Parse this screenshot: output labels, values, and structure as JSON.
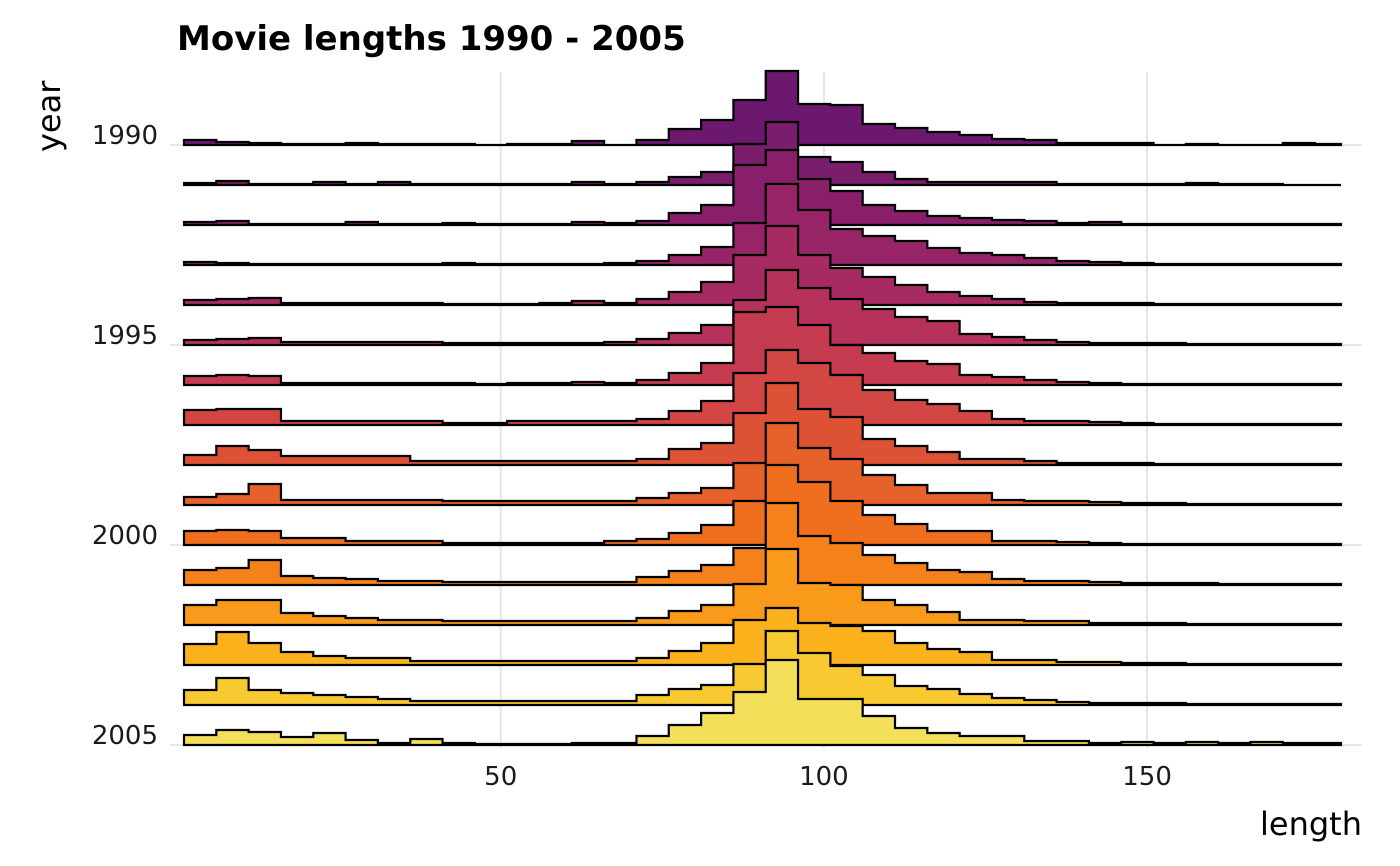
{
  "chart_data": {
    "type": "ridgeline",
    "title": "Movie lengths 1990 - 2005",
    "xlabel": "length",
    "ylabel": "year",
    "xlim": [
      1,
      180
    ],
    "x_ticks": [
      50,
      100,
      150
    ],
    "y_ticks": [
      1990,
      1995,
      2000,
      2005
    ],
    "bin_edges": [
      1,
      6,
      11,
      16,
      21,
      26,
      31,
      36,
      41,
      46,
      51,
      56,
      61,
      66,
      71,
      76,
      81,
      86,
      91,
      96,
      101,
      106,
      111,
      116,
      121,
      126,
      131,
      136,
      141,
      146,
      151,
      156,
      161,
      166,
      171,
      176,
      180
    ],
    "grid": true,
    "legend": "none",
    "colormap": "inferno",
    "colors": [
      "#6b186e",
      "#7a1d6d",
      "#891f6b",
      "#982468",
      "#a72b62",
      "#b6325b",
      "#c53b4f",
      "#d24644",
      "#dd5235",
      "#e7612a",
      "#ef6f1e",
      "#f5811b",
      "#f99a1a",
      "#fbb21d",
      "#f9c932",
      "#f3df5a",
      "#f1ef75",
      "#fcffa4"
    ],
    "series": [
      {
        "name": "1990",
        "values": [
          0.05,
          0.03,
          0.02,
          0.01,
          0.01,
          0.02,
          0.01,
          0.01,
          0.01,
          0,
          0.01,
          0.01,
          0.04,
          0,
          0.05,
          0.16,
          0.25,
          0.45,
          0.74,
          0.41,
          0.4,
          0.21,
          0.17,
          0.13,
          0.1,
          0.06,
          0.05,
          0.02,
          0.02,
          0.02,
          0,
          0.01,
          0,
          0,
          0.02,
          0.01
        ]
      },
      {
        "name": "1991",
        "values": [
          0.02,
          0.04,
          0.01,
          0.01,
          0.03,
          0.01,
          0.03,
          0.01,
          0.01,
          0.01,
          0.01,
          0.01,
          0.03,
          0.01,
          0.03,
          0.08,
          0.13,
          0.41,
          0.63,
          0.28,
          0.23,
          0.13,
          0.06,
          0.03,
          0.03,
          0.03,
          0.03,
          0.01,
          0.01,
          0.01,
          0.01,
          0.02,
          0.01,
          0.01,
          0,
          0
        ]
      },
      {
        "name": "1992",
        "values": [
          0.03,
          0.04,
          0.01,
          0.01,
          0.01,
          0.03,
          0.01,
          0.01,
          0.02,
          0.01,
          0.01,
          0.01,
          0.03,
          0.02,
          0.04,
          0.12,
          0.2,
          0.6,
          0.75,
          0.46,
          0.34,
          0.2,
          0.14,
          0.09,
          0.07,
          0.05,
          0.04,
          0.02,
          0.03,
          0.01,
          0.01,
          0.01,
          0.01,
          0.01,
          0.01,
          0.01
        ]
      },
      {
        "name": "1993",
        "values": [
          0.03,
          0.02,
          0.01,
          0.01,
          0.01,
          0.01,
          0.01,
          0.01,
          0.02,
          0.01,
          0.01,
          0.01,
          0.01,
          0.02,
          0.04,
          0.1,
          0.18,
          0.42,
          0.81,
          0.55,
          0.36,
          0.29,
          0.24,
          0.17,
          0.12,
          0.1,
          0.07,
          0.04,
          0.03,
          0.02,
          0.01,
          0.01,
          0.01,
          0.01,
          0.01,
          0.01
        ]
      },
      {
        "name": "1994",
        "values": [
          0.05,
          0.06,
          0.07,
          0.02,
          0.02,
          0.02,
          0.02,
          0.02,
          0.01,
          0.01,
          0.01,
          0.02,
          0.04,
          0.02,
          0.06,
          0.13,
          0.23,
          0.5,
          0.79,
          0.5,
          0.37,
          0.28,
          0.2,
          0.13,
          0.09,
          0.06,
          0.03,
          0.02,
          0.02,
          0.02,
          0.01,
          0.01,
          0.01,
          0.01,
          0.01,
          0.01
        ]
      },
      {
        "name": "1995",
        "values": [
          0.05,
          0.06,
          0.07,
          0.03,
          0.03,
          0.03,
          0.03,
          0.03,
          0.02,
          0.02,
          0.02,
          0.02,
          0.02,
          0.03,
          0.06,
          0.12,
          0.2,
          0.45,
          0.75,
          0.57,
          0.46,
          0.36,
          0.28,
          0.24,
          0.11,
          0.08,
          0.05,
          0.03,
          0.02,
          0.02,
          0.02,
          0.01,
          0.01,
          0.01,
          0.01,
          0.01
        ]
      },
      {
        "name": "1996",
        "values": [
          0.09,
          0.1,
          0.09,
          0.02,
          0.02,
          0.02,
          0.02,
          0.02,
          0.02,
          0.01,
          0.02,
          0.02,
          0.03,
          0.02,
          0.05,
          0.12,
          0.22,
          0.73,
          0.78,
          0.6,
          0.4,
          0.32,
          0.24,
          0.21,
          0.1,
          0.08,
          0.05,
          0.03,
          0.02,
          0.01,
          0.01,
          0.01,
          0.01,
          0.01,
          0.01,
          0.01
        ]
      },
      {
        "name": "1997",
        "values": [
          0.15,
          0.16,
          0.16,
          0.04,
          0.04,
          0.04,
          0.04,
          0.04,
          0.02,
          0.02,
          0.04,
          0.04,
          0.04,
          0.04,
          0.06,
          0.14,
          0.24,
          0.52,
          0.75,
          0.62,
          0.5,
          0.35,
          0.25,
          0.21,
          0.14,
          0.06,
          0.04,
          0.04,
          0.03,
          0.02,
          0.01,
          0.01,
          0.01,
          0.01,
          0.01,
          0.01
        ]
      },
      {
        "name": "1998",
        "values": [
          0.1,
          0.19,
          0.15,
          0.09,
          0.09,
          0.09,
          0.09,
          0.04,
          0.04,
          0.04,
          0.04,
          0.04,
          0.04,
          0.04,
          0.06,
          0.16,
          0.22,
          0.52,
          0.82,
          0.56,
          0.48,
          0.26,
          0.19,
          0.13,
          0.06,
          0.06,
          0.04,
          0.02,
          0.02,
          0.02,
          0.01,
          0.01,
          0.01,
          0.01,
          0.01,
          0.01
        ]
      },
      {
        "name": "1999",
        "values": [
          0.08,
          0.11,
          0.21,
          0.05,
          0.05,
          0.05,
          0.05,
          0.05,
          0.04,
          0.04,
          0.04,
          0.04,
          0.04,
          0.04,
          0.07,
          0.12,
          0.17,
          0.42,
          0.82,
          0.57,
          0.46,
          0.3,
          0.2,
          0.12,
          0.12,
          0.05,
          0.04,
          0.04,
          0.03,
          0.02,
          0.02,
          0.01,
          0.01,
          0.01,
          0.01,
          0.01
        ]
      },
      {
        "name": "2000",
        "values": [
          0.14,
          0.15,
          0.14,
          0.07,
          0.07,
          0.04,
          0.04,
          0.04,
          0.02,
          0.02,
          0.02,
          0.02,
          0.02,
          0.04,
          0.06,
          0.12,
          0.2,
          0.44,
          0.8,
          0.63,
          0.44,
          0.3,
          0.21,
          0.14,
          0.14,
          0.04,
          0.04,
          0.03,
          0.02,
          0.01,
          0.01,
          0.01,
          0.01,
          0.01,
          0.01,
          0.01
        ]
      },
      {
        "name": "2001",
        "values": [
          0.15,
          0.17,
          0.25,
          0.09,
          0.07,
          0.06,
          0.04,
          0.04,
          0.03,
          0.03,
          0.03,
          0.03,
          0.03,
          0.03,
          0.08,
          0.14,
          0.2,
          0.37,
          0.82,
          0.49,
          0.42,
          0.3,
          0.22,
          0.15,
          0.13,
          0.06,
          0.04,
          0.04,
          0.03,
          0.02,
          0.02,
          0.02,
          0.01,
          0.01,
          0.01,
          0.01
        ]
      },
      {
        "name": "2002",
        "values": [
          0.2,
          0.25,
          0.25,
          0.12,
          0.09,
          0.07,
          0.05,
          0.05,
          0.04,
          0.04,
          0.04,
          0.04,
          0.04,
          0.04,
          0.07,
          0.14,
          0.2,
          0.41,
          0.76,
          0.42,
          0.4,
          0.25,
          0.2,
          0.13,
          0.05,
          0.05,
          0.04,
          0.04,
          0.02,
          0.02,
          0.02,
          0.01,
          0.01,
          0.01,
          0.01,
          0.01
        ]
      },
      {
        "name": "2003",
        "values": [
          0.21,
          0.33,
          0.22,
          0.13,
          0.09,
          0.07,
          0.07,
          0.04,
          0.04,
          0.04,
          0.04,
          0.04,
          0.04,
          0.04,
          0.07,
          0.14,
          0.22,
          0.45,
          0.57,
          0.42,
          0.39,
          0.34,
          0.22,
          0.16,
          0.13,
          0.05,
          0.05,
          0.03,
          0.03,
          0.02,
          0.02,
          0.01,
          0.01,
          0.01,
          0.01,
          0.01
        ]
      },
      {
        "name": "2004",
        "values": [
          0.15,
          0.27,
          0.15,
          0.12,
          0.1,
          0.08,
          0.06,
          0.04,
          0.04,
          0.04,
          0.04,
          0.04,
          0.04,
          0.04,
          0.1,
          0.16,
          0.2,
          0.41,
          0.74,
          0.52,
          0.39,
          0.3,
          0.19,
          0.16,
          0.11,
          0.07,
          0.05,
          0.03,
          0.02,
          0.02,
          0.02,
          0.01,
          0.01,
          0.01,
          0.01,
          0.01
        ]
      },
      {
        "name": "2005",
        "values": [
          0.1,
          0.15,
          0.13,
          0.08,
          0.12,
          0.05,
          0.02,
          0.06,
          0.02,
          0.01,
          0.01,
          0.01,
          0.02,
          0.02,
          0.09,
          0.2,
          0.32,
          0.53,
          0.85,
          0.46,
          0.46,
          0.29,
          0.17,
          0.12,
          0.09,
          0.09,
          0.04,
          0.04,
          0.02,
          0.03,
          0.02,
          0.03,
          0.02,
          0.03,
          0.02,
          0.02
        ]
      }
    ]
  }
}
